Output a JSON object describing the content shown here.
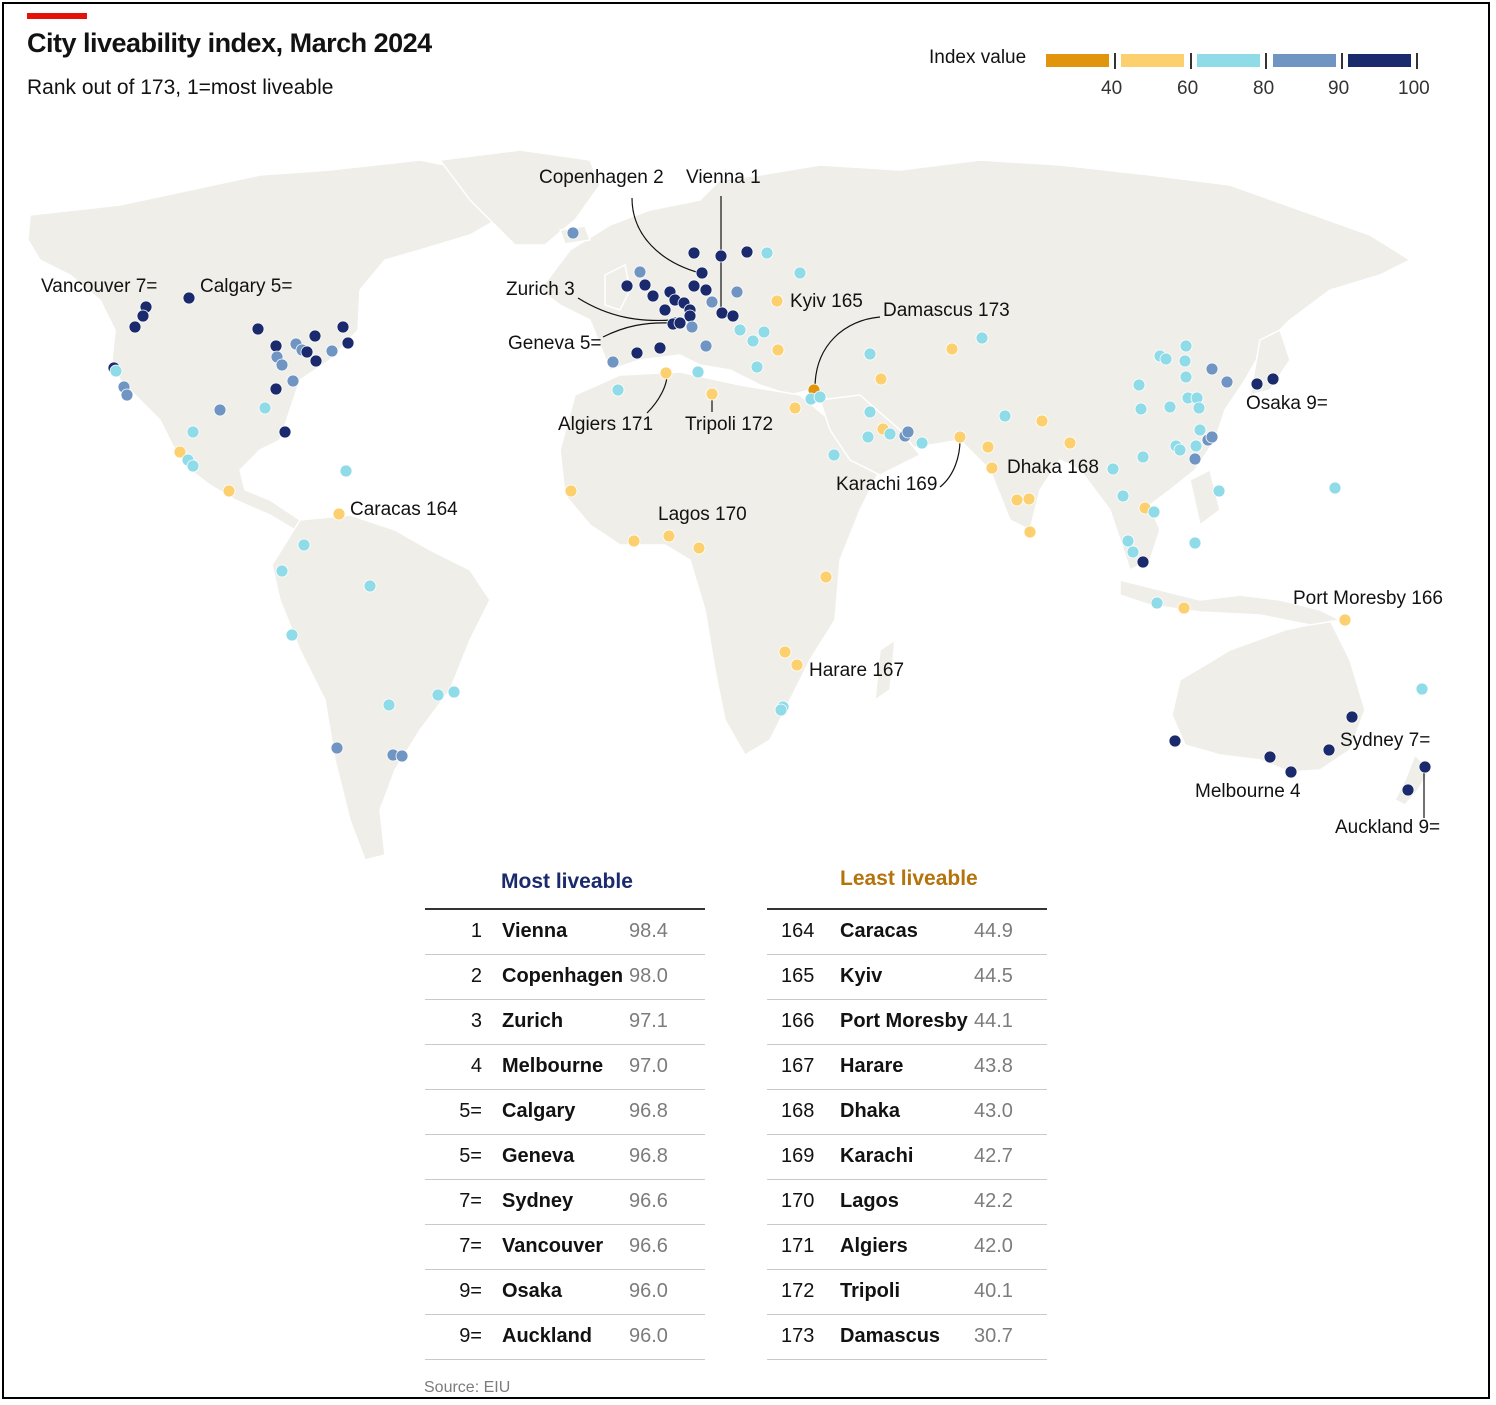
{
  "header": {
    "title": "City liveability index, March 2024",
    "subtitle": "Rank out of 173, 1=most liveable"
  },
  "legend": {
    "title": "Index value",
    "ticks": [
      "40",
      "60",
      "80",
      "90",
      "100"
    ],
    "colors": [
      "#e1950e",
      "#fdd06f",
      "#8fdce8",
      "#7095c3",
      "#1a2a6c"
    ]
  },
  "map_labels": {
    "copenhagen": "Copenhagen 2",
    "vienna": "Vienna 1",
    "zurich": "Zurich 3",
    "geneva": "Geneva 5=",
    "vancouver": "Vancouver 7=",
    "calgary": "Calgary 5=",
    "kyiv": "Kyiv 165",
    "damascus": "Damascus 173",
    "algiers": "Algiers 171",
    "tripoli": "Tripoli 172",
    "caracas": "Caracas 164",
    "lagos": "Lagos 170",
    "karachi": "Karachi 169",
    "dhaka": "Dhaka 168",
    "osaka": "Osaka 9=",
    "port_moresby": "Port Moresby 166",
    "harare": "Harare 167",
    "sydney": "Sydney 7=",
    "melbourne": "Melbourne 4",
    "auckland": "Auckland 9="
  },
  "most_liveable": {
    "heading": "Most liveable",
    "heading_color": "#1a2a6c",
    "rows": [
      {
        "rank": "1",
        "city": "Vienna",
        "value": "98.4"
      },
      {
        "rank": "2",
        "city": "Copenhagen",
        "value": "98.0"
      },
      {
        "rank": "3",
        "city": "Zurich",
        "value": "97.1"
      },
      {
        "rank": "4",
        "city": "Melbourne",
        "value": "97.0"
      },
      {
        "rank": "5=",
        "city": "Calgary",
        "value": "96.8"
      },
      {
        "rank": "5=",
        "city": "Geneva",
        "value": "96.8"
      },
      {
        "rank": "7=",
        "city": "Sydney",
        "value": "96.6"
      },
      {
        "rank": "7=",
        "city": "Vancouver",
        "value": "96.6"
      },
      {
        "rank": "9=",
        "city": "Osaka",
        "value": "96.0"
      },
      {
        "rank": "9=",
        "city": "Auckland",
        "value": "96.0"
      }
    ]
  },
  "least_liveable": {
    "heading": "Least liveable",
    "heading_color": "#b5730b",
    "rows": [
      {
        "rank": "164",
        "city": "Caracas",
        "value": "44.9"
      },
      {
        "rank": "165",
        "city": "Kyiv",
        "value": "44.5"
      },
      {
        "rank": "166",
        "city": "Port Moresby",
        "value": "44.1"
      },
      {
        "rank": "167",
        "city": "Harare",
        "value": "43.8"
      },
      {
        "rank": "168",
        "city": "Dhaka",
        "value": "43.0"
      },
      {
        "rank": "169",
        "city": "Karachi",
        "value": "42.7"
      },
      {
        "rank": "170",
        "city": "Lagos",
        "value": "42.2"
      },
      {
        "rank": "171",
        "city": "Algiers",
        "value": "42.0"
      },
      {
        "rank": "172",
        "city": "Tripoli",
        "value": "40.1"
      },
      {
        "rank": "173",
        "city": "Damascus",
        "value": "30.7"
      }
    ]
  },
  "source": "Source: EIU"
}
